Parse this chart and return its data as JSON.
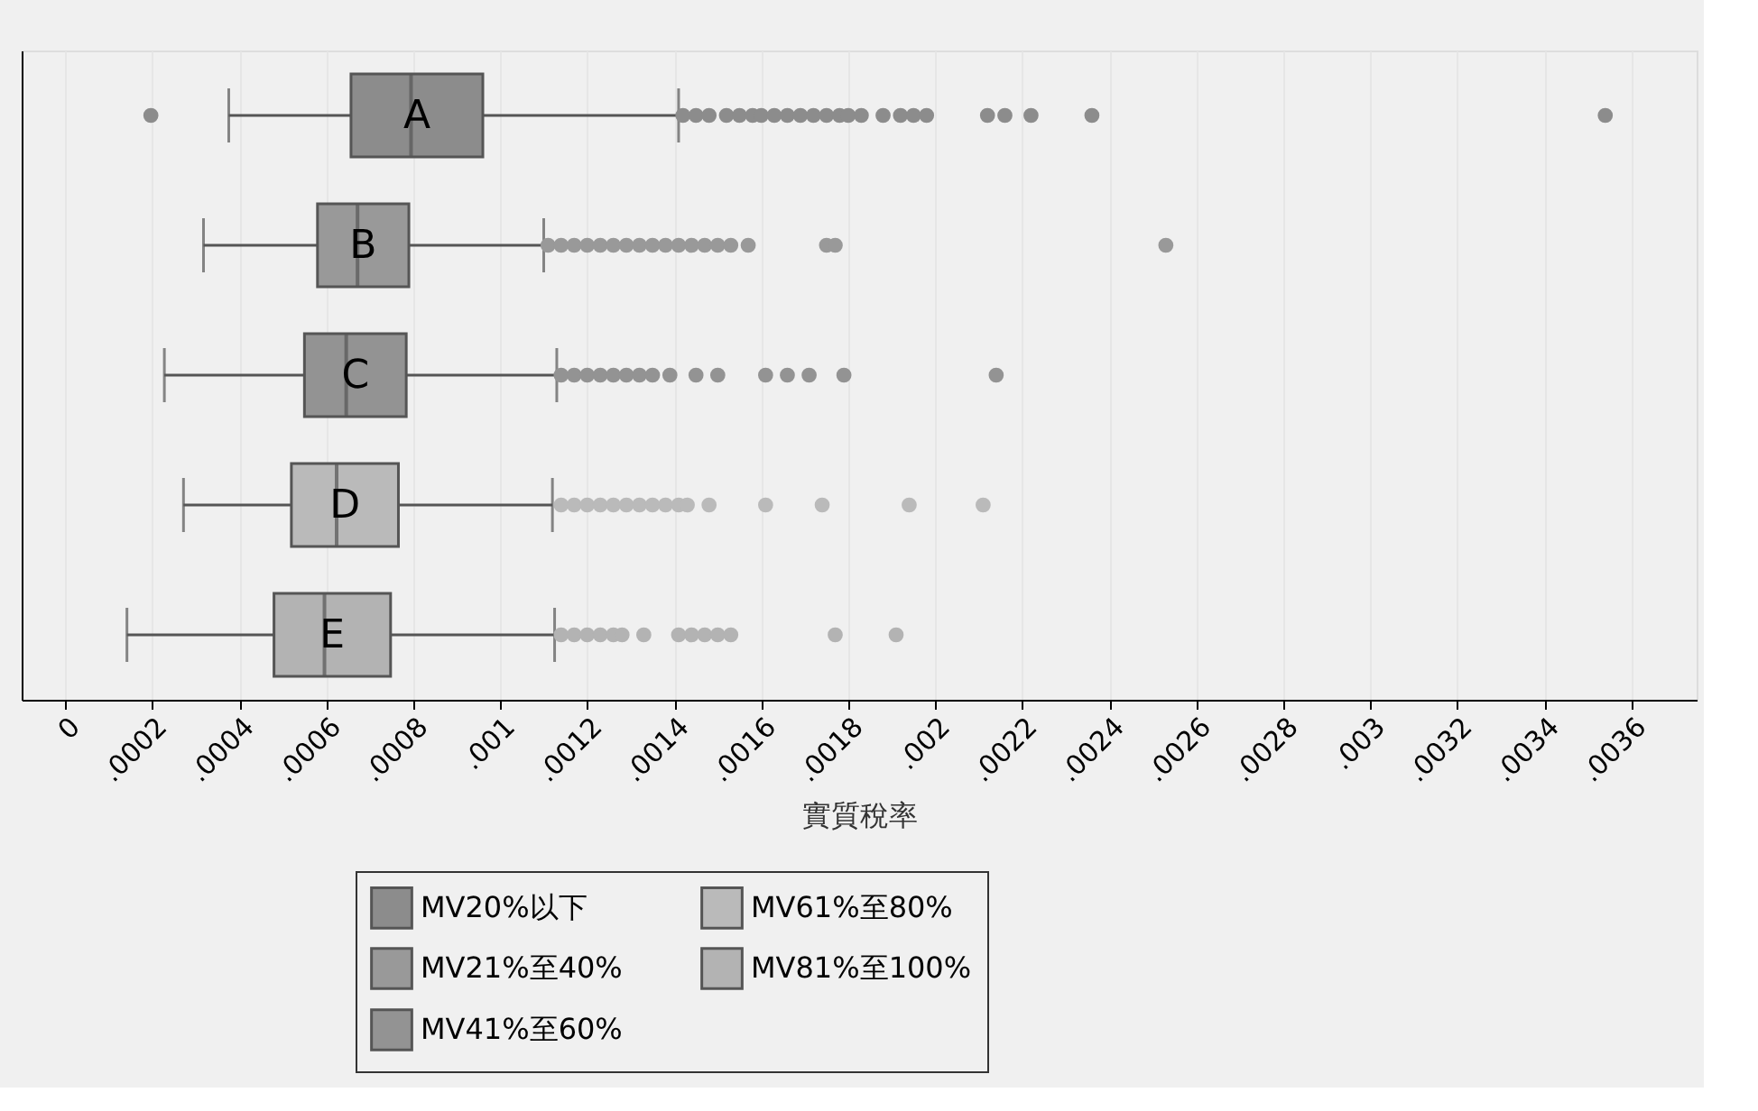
{
  "chart_data": {
    "type": "box",
    "orientation": "horizontal",
    "xlabel": "實質稅率",
    "categories": [
      "A",
      "B",
      "C",
      "D",
      "E"
    ],
    "xlim": [
      -0.0001,
      0.00375
    ],
    "xticks": [
      {
        "value": 0,
        "label": "0"
      },
      {
        "value": 0.0002,
        "label": ".0002"
      },
      {
        "value": 0.0004,
        "label": ".0004"
      },
      {
        "value": 0.0006,
        "label": ".0006"
      },
      {
        "value": 0.0008,
        "label": ".0008"
      },
      {
        "value": 0.001,
        "label": ".001"
      },
      {
        "value": 0.0012,
        "label": ".0012"
      },
      {
        "value": 0.0014,
        "label": ".0014"
      },
      {
        "value": 0.0016,
        "label": ".0016"
      },
      {
        "value": 0.0018,
        "label": ".0018"
      },
      {
        "value": 0.002,
        "label": ".002"
      },
      {
        "value": 0.0022,
        "label": ".0022"
      },
      {
        "value": 0.0024,
        "label": ".0024"
      },
      {
        "value": 0.0026,
        "label": ".0026"
      },
      {
        "value": 0.0028,
        "label": ".0028"
      },
      {
        "value": 0.003,
        "label": ".003"
      },
      {
        "value": 0.0032,
        "label": ".0032"
      },
      {
        "value": 0.0034,
        "label": ".0034"
      },
      {
        "value": 0.0036,
        "label": ".0036"
      }
    ],
    "grid": "x",
    "legend": "bottom",
    "tick_labels": "x",
    "marker": "circle",
    "series": [
      {
        "name": "MV20%以下",
        "color": "#8c8c8c",
        "boxes": [
          {
            "low": 0.000376,
            "q1": 0.000657,
            "median": 0.000795,
            "q3": 0.00096,
            "high": 0.00141,
            "outliers": [
              0.000197,
              0.00142,
              0.00145,
              0.00148,
              0.00152,
              0.00155,
              0.00158,
              0.0016,
              0.00163,
              0.00166,
              0.00169,
              0.00172,
              0.00175,
              0.00178,
              0.0018,
              0.00183,
              0.00188,
              0.00192,
              0.00195,
              0.00198,
              0.00212,
              0.00216,
              0.00222,
              0.00236,
              0.00354
            ]
          },
          null,
          null,
          null,
          null
        ]
      },
      {
        "name": "MV21%至40%",
        "color": "#999999",
        "boxes": [
          null,
          {
            "low": 0.000318,
            "q1": 0.00058,
            "median": 0.000672,
            "q3": 0.00079,
            "high": 0.0011,
            "outliers": [
              0.00111,
              0.00114,
              0.00117,
              0.0012,
              0.00123,
              0.00126,
              0.00129,
              0.00132,
              0.00135,
              0.00138,
              0.00141,
              0.00144,
              0.00147,
              0.0015,
              0.00153,
              0.00157,
              0.00175,
              0.00177,
              0.00253
            ]
          },
          null,
          null,
          null
        ]
      },
      {
        "name": "MV41%至60%",
        "color": "#939393",
        "boxes": [
          null,
          null,
          {
            "low": 0.000228,
            "q1": 0.00055,
            "median": 0.000646,
            "q3": 0.000784,
            "high": 0.00113,
            "outliers": [
              0.00114,
              0.00117,
              0.0012,
              0.00123,
              0.00126,
              0.00129,
              0.00132,
              0.00135,
              0.00139,
              0.00145,
              0.0015,
              0.00161,
              0.00166,
              0.00171,
              0.00179,
              0.00214
            ]
          },
          null,
          null
        ]
      },
      {
        "name": "MV61%至80%",
        "color": "#bababa",
        "boxes": [
          null,
          null,
          null,
          {
            "low": 0.000272,
            "q1": 0.00052,
            "median": 0.000624,
            "q3": 0.000766,
            "high": 0.00112,
            "outliers": [
              0.00114,
              0.00117,
              0.0012,
              0.00123,
              0.00126,
              0.00129,
              0.00132,
              0.00135,
              0.00138,
              0.00141,
              0.00143,
              0.00148,
              0.00161,
              0.00174,
              0.00194,
              0.00211
            ]
          },
          null
        ]
      },
      {
        "name": "MV81%至100%",
        "color": "#b3b3b3",
        "boxes": [
          null,
          null,
          null,
          null,
          {
            "low": 0.000142,
            "q1": 0.00048,
            "median": 0.000596,
            "q3": 0.000748,
            "high": 0.001125,
            "outliers": [
              0.00114,
              0.00117,
              0.0012,
              0.00123,
              0.00126,
              0.00128,
              0.00133,
              0.00141,
              0.00144,
              0.00147,
              0.0015,
              0.00153,
              0.00177,
              0.00191
            ]
          }
        ]
      }
    ]
  }
}
